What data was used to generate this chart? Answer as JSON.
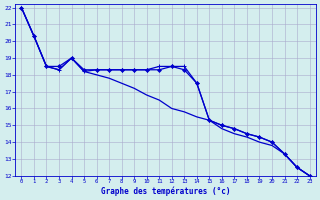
{
  "title": "Graphe des températures (°c)",
  "bg_color": "#d4eeee",
  "grid_color": "#aaaacc",
  "line_color": "#0000cc",
  "xlim": [
    -0.5,
    23.5
  ],
  "ylim": [
    12,
    22.2
  ],
  "xticks": [
    0,
    1,
    2,
    3,
    4,
    5,
    6,
    7,
    8,
    9,
    10,
    11,
    12,
    13,
    14,
    15,
    16,
    17,
    18,
    19,
    20,
    21,
    22,
    23
  ],
  "yticks": [
    12,
    13,
    14,
    15,
    16,
    17,
    18,
    19,
    20,
    21,
    22
  ],
  "series1_x": [
    0,
    1,
    2,
    3,
    4,
    5,
    6,
    7,
    8,
    9,
    10,
    11,
    12,
    13,
    14,
    15,
    16,
    17,
    18,
    19,
    20,
    21,
    22,
    23
  ],
  "series1_y": [
    22.0,
    20.3,
    18.5,
    18.5,
    19.0,
    18.3,
    18.3,
    18.3,
    18.3,
    18.3,
    18.3,
    18.3,
    18.5,
    18.3,
    17.5,
    15.3,
    15.0,
    14.8,
    14.5,
    14.3,
    14.0,
    13.3,
    12.5,
    12.0
  ],
  "series2_x": [
    0,
    1,
    2,
    3,
    4,
    5,
    6,
    7,
    8,
    9,
    10,
    11,
    12,
    13,
    14,
    15,
    16,
    17,
    18,
    19,
    20,
    21,
    22,
    23
  ],
  "series2_y": [
    22.0,
    20.3,
    18.5,
    18.3,
    19.0,
    18.2,
    18.0,
    17.8,
    17.5,
    17.2,
    16.8,
    16.5,
    16.0,
    15.8,
    15.5,
    15.3,
    14.8,
    14.5,
    14.3,
    14.0,
    13.8,
    13.3,
    12.5,
    12.0
  ],
  "series3_x": [
    0,
    1,
    2,
    3,
    4,
    5,
    6,
    7,
    8,
    9,
    10,
    11,
    12,
    13,
    14,
    15,
    16,
    17,
    18,
    19,
    20,
    21,
    22,
    23
  ],
  "series3_y": [
    22.0,
    20.3,
    18.5,
    18.3,
    19.0,
    18.2,
    18.3,
    18.3,
    18.3,
    18.3,
    18.3,
    18.5,
    18.5,
    18.5,
    17.5,
    15.3,
    15.0,
    14.8,
    14.5,
    14.3,
    14.0,
    13.3,
    12.5,
    12.0
  ]
}
